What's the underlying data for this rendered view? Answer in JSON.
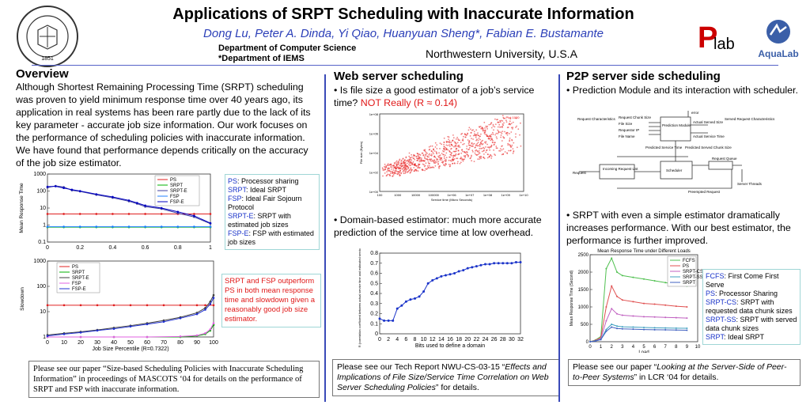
{
  "header": {
    "title": "Applications of SRPT Scheduling with Inaccurate Information",
    "authors": "Dong Lu,  Peter A. Dinda,  Yi Qiao,  Huanyuan Sheng*,  Fabian E. Bustamante",
    "dept1": "Department of Computer Science",
    "dept2": "*Department of IEMS",
    "university": "Northwestern University, U.S.A",
    "seal_text": "NORTHWESTERN UNIVERSITY",
    "seal_year": "1851",
    "plab_logo": "Plab",
    "aqualab_logo": "AquaLab"
  },
  "overview": {
    "heading": "Overview",
    "text": "Although Shortest Remaining Processing Time (SRPT) scheduling was proven to yield minimum response time over 40 years ago, its application in real systems has been rare partly due to the lack of its key parameter - accurate job size information. Our work focuses on the performance of scheduling policies with inaccurate information. We have found that performance depends critically on the accuracy of the job size estimator.",
    "legend": [
      {
        "abbr": "PS",
        "desc": ": Processor sharing"
      },
      {
        "abbr": "SRPT",
        "desc": ": Ideal SRPT"
      },
      {
        "abbr": "FSP",
        "desc": ": Ideal Fair Sojourn Protocol"
      },
      {
        "abbr": "SRPT-E",
        "desc": ": SRPT with estimated job sizes"
      },
      {
        "abbr": "FSP-E",
        "desc": ": FSP with estimated job sizes"
      }
    ],
    "note": "SRPT and FSP outperform PS in both mean response time and slowdown given a reasonably good job size estimator.",
    "ref": "Please see our paper “Size-based Scheduling Policies with Inaccurate Scheduling Information” in proceedings of MASCOTS ‘04 for details on the performance of SRPT and FSP with inaccurate information."
  },
  "web": {
    "heading": "Web server scheduling",
    "bullet1_a": "Is file size a good estimator of a job’s service time?",
    "bullet1_b": "NOT Really (R ≈ 0.14)",
    "bullet2": "Domain-based estimator: much more accurate prediction of the service time at low overhead.",
    "ref_a": "Please see our Tech Report NWU-CS-03-15 “",
    "ref_b": "Effects and Implications of File Size/Service Time Correlation on Web Server Scheduling Policies",
    "ref_c": "”  for details."
  },
  "p2p": {
    "heading": "P2P server side scheduling",
    "bullet1": "Prediction Module and its interaction with scheduler.",
    "bullet2": "SRPT with even a simple estimator dramatically increases performance.  With our best estimator, the performance is further improved.",
    "legend": [
      {
        "abbr": "FCFS",
        "desc": ": First Come First Serve"
      },
      {
        "abbr": "PS",
        "desc": ": Processor Sharing"
      },
      {
        "abbr": "SRPT-CS",
        "desc": ": SRPT with requested data chunk sizes"
      },
      {
        "abbr": "SRPT-SS",
        "desc": ": SRPT with served data chunk sizes"
      },
      {
        "abbr": "SRPT",
        "desc": ": Ideal SRPT"
      }
    ],
    "ref_a": "Please see our paper “",
    "ref_b": "Looking at the Server-Side of Peer-to-Peer Systems",
    "ref_c": "” in LCR ‘04 for details.",
    "diagram": {
      "prediction_module": "Prediction Module",
      "scheduler": "Scheduler",
      "incoming": "Incoming Request List",
      "request_queue": "Request Queue",
      "server_threads": "Server Threads",
      "request_characteristics": "Request Characteristics",
      "served_request_characteristics": "Served Request Characteristics",
      "request": "Request",
      "preempted": "Preempted Request",
      "predicted_service_time": "Predicted Service Time",
      "error": "error",
      "actual_served_size": "Actual Served Size",
      "actual_service_time": "Actual Service Time",
      "predicted_served_chunk_size": "Predicted Served Chunk Size",
      "inputs": [
        "Request Chunk Size",
        "File Size",
        "Requestor IP",
        "File Name"
      ]
    }
  },
  "chart_data": [
    {
      "id": "mean-response",
      "type": "line",
      "ylabel": "Mean Response Time",
      "xlabel": "",
      "yscale": "log",
      "ylim": [
        0.1,
        1000
      ],
      "xlim": [
        0,
        1
      ],
      "xticks": [
        "0",
        "0.2",
        "0.4",
        "0.6",
        "0.8",
        "1"
      ],
      "yticks": [
        "0.1",
        "1",
        "10",
        "100",
        "1000"
      ],
      "legend": [
        "PS",
        "SRPT",
        "SRPT-E",
        "FSP",
        "FSP-E"
      ],
      "series": [
        {
          "name": "PS",
          "color": "#e02020",
          "x": [
            0,
            0.1,
            0.2,
            0.3,
            0.4,
            0.5,
            0.6,
            0.7,
            0.8,
            0.9,
            1
          ],
          "values": [
            4.5,
            4.5,
            4.5,
            4.5,
            4.5,
            4.5,
            4.5,
            4.5,
            4.5,
            4.5,
            4.5
          ]
        },
        {
          "name": "SRPT",
          "color": "#00b000",
          "x": [
            0,
            0.1,
            0.2,
            0.3,
            0.4,
            0.5,
            0.6,
            0.7,
            0.8,
            0.9,
            1
          ],
          "values": [
            0.75,
            0.75,
            0.75,
            0.75,
            0.75,
            0.75,
            0.75,
            0.75,
            0.75,
            0.75,
            0.75
          ]
        },
        {
          "name": "SRPT-E",
          "color": "#4040a0",
          "x": [
            0,
            0.05,
            0.1,
            0.15,
            0.2,
            0.3,
            0.4,
            0.5,
            0.55,
            0.6,
            0.7,
            0.8,
            0.9,
            1
          ],
          "values": [
            160,
            200,
            170,
            110,
            95,
            60,
            40,
            25,
            18,
            12,
            9,
            5,
            3,
            1.2
          ]
        },
        {
          "name": "FSP",
          "color": "#2080ff",
          "x": [
            0,
            0.1,
            0.2,
            0.3,
            0.4,
            0.5,
            0.6,
            0.7,
            0.8,
            0.9,
            1
          ],
          "values": [
            0.8,
            0.8,
            0.8,
            0.8,
            0.8,
            0.8,
            0.8,
            0.8,
            0.8,
            0.8,
            0.8
          ]
        },
        {
          "name": "FSP-E",
          "color": "#0000c0",
          "x": [
            0,
            0.05,
            0.1,
            0.15,
            0.2,
            0.3,
            0.4,
            0.5,
            0.55,
            0.6,
            0.7,
            0.8,
            0.9,
            1
          ],
          "values": [
            180,
            190,
            150,
            120,
            100,
            65,
            45,
            28,
            20,
            14,
            10,
            6,
            3.5,
            1.3
          ]
        }
      ]
    },
    {
      "id": "slowdown",
      "type": "line",
      "ylabel": "Slowdown",
      "xlabel": "Job Size Percentile (R=0.7322)",
      "yscale": "log",
      "ylim": [
        1,
        1000
      ],
      "xlim": [
        0,
        100
      ],
      "xticks": [
        "0",
        "10",
        "20",
        "30",
        "40",
        "50",
        "60",
        "70",
        "80",
        "90",
        "100"
      ],
      "yticks": [
        "1",
        "10",
        "100",
        "1000"
      ],
      "legend": [
        "PS",
        "SRPT",
        "SRPT-E",
        "FSP",
        "FSP-E"
      ],
      "series": [
        {
          "name": "PS",
          "color": "#e02020",
          "x": [
            0,
            10,
            20,
            30,
            40,
            50,
            60,
            70,
            80,
            90,
            95,
            100
          ],
          "values": [
            18,
            18,
            18,
            18,
            18,
            18,
            18,
            18,
            18,
            18,
            18,
            18
          ]
        },
        {
          "name": "SRPT",
          "color": "#00b000",
          "x": [
            0,
            20,
            40,
            60,
            80,
            90,
            95,
            98,
            100
          ],
          "values": [
            1,
            1,
            1,
            1,
            1,
            1.1,
            1.3,
            1.8,
            3
          ]
        },
        {
          "name": "SRPT-E",
          "color": "#404040",
          "x": [
            0,
            10,
            20,
            30,
            40,
            50,
            60,
            70,
            80,
            90,
            95,
            98,
            100
          ],
          "values": [
            1.2,
            1.4,
            1.6,
            1.9,
            2.3,
            2.8,
            3.5,
            4.5,
            6,
            9,
            14,
            25,
            45
          ]
        },
        {
          "name": "FSP",
          "color": "#e060e0",
          "x": [
            0,
            20,
            40,
            60,
            80,
            90,
            95,
            98,
            100
          ],
          "values": [
            1,
            1,
            1,
            1,
            1.05,
            1.15,
            1.4,
            2,
            3.5
          ]
        },
        {
          "name": "FSP-E",
          "color": "#2030d0",
          "x": [
            0,
            10,
            20,
            30,
            40,
            50,
            60,
            70,
            80,
            90,
            95,
            98,
            100
          ],
          "values": [
            1.1,
            1.3,
            1.5,
            1.8,
            2.1,
            2.6,
            3.2,
            4,
            5.5,
            8,
            12,
            20,
            35
          ]
        }
      ]
    },
    {
      "id": "file-size-scatter",
      "type": "scatter",
      "title": "Plot 1000",
      "ylabel": "File size (Bytes)",
      "xlabel": "Service time (Micro Seconds)",
      "xscale": "log",
      "yscale": "log",
      "xticks": [
        "100",
        "1000",
        "10000",
        "100000",
        "1e+06",
        "1e+07",
        "1e+08",
        "1e+09",
        "1e+10"
      ],
      "yticks": [
        "1e+00",
        "1e+02",
        "1e+04",
        "1e+06",
        "1e+08"
      ]
    },
    {
      "id": "domain-correlation",
      "type": "line",
      "ylabel": "R (correlation coefficient between actual service time and estimated service time)",
      "xlabel": "Bits used to define a domain",
      "xlim": [
        0,
        32
      ],
      "ylim": [
        0,
        0.8
      ],
      "xticks": [
        "0",
        "2",
        "4",
        "6",
        "8",
        "10",
        "12",
        "14",
        "16",
        "18",
        "20",
        "22",
        "24",
        "26",
        "28",
        "30",
        "32"
      ],
      "yticks": [
        "0",
        "0.1",
        "0.2",
        "0.3",
        "0.4",
        "0.5",
        "0.6",
        "0.7",
        "0.8"
      ],
      "x": [
        0,
        1,
        2,
        3,
        4,
        5,
        6,
        7,
        8,
        9,
        10,
        11,
        12,
        13,
        14,
        15,
        16,
        17,
        18,
        19,
        20,
        21,
        22,
        23,
        24,
        25,
        26,
        27,
        28,
        29,
        30,
        31,
        32
      ],
      "values": [
        0.15,
        0.13,
        0.13,
        0.13,
        0.25,
        0.28,
        0.32,
        0.34,
        0.35,
        0.37,
        0.42,
        0.5,
        0.53,
        0.55,
        0.57,
        0.58,
        0.59,
        0.6,
        0.62,
        0.63,
        0.65,
        0.66,
        0.67,
        0.68,
        0.69,
        0.69,
        0.7,
        0.7,
        0.7,
        0.7,
        0.7,
        0.71,
        0.71
      ]
    },
    {
      "id": "p2p-mean-response",
      "type": "line",
      "title": "Mean Response Time under Different Loads",
      "ylabel": "Mean Response Time (Second)",
      "xlabel": "Load",
      "xlim": [
        0,
        10
      ],
      "ylim": [
        0,
        2500
      ],
      "xticks": [
        "0",
        "1",
        "2",
        "3",
        "4",
        "5",
        "6",
        "7",
        "8",
        "9",
        "10"
      ],
      "yticks": [
        "0",
        "500",
        "1000",
        "1500",
        "2000",
        "2500"
      ],
      "legend": [
        "FCFS",
        "PS",
        "SRPT-CS",
        "SRPT-SS",
        "SRPT"
      ],
      "series": [
        {
          "name": "FCFS",
          "color": "#50c050",
          "x": [
            0,
            0.5,
            1,
            1.5,
            2,
            2.5,
            3,
            4,
            5,
            6,
            7,
            8,
            9
          ],
          "values": [
            0,
            50,
            150,
            2100,
            2400,
            2000,
            1900,
            1850,
            1800,
            1750,
            1700,
            1650,
            1600
          ]
        },
        {
          "name": "PS",
          "color": "#e05050",
          "x": [
            0,
            0.5,
            1,
            1.5,
            2,
            2.5,
            3,
            4,
            5,
            6,
            7,
            8,
            9
          ],
          "values": [
            0,
            40,
            120,
            1000,
            1600,
            1300,
            1200,
            1150,
            1100,
            1080,
            1050,
            1020,
            1000
          ]
        },
        {
          "name": "SRPT-CS",
          "color": "#c060c0",
          "x": [
            0,
            0.5,
            1,
            1.5,
            2,
            2.5,
            3,
            4,
            5,
            6,
            7,
            8,
            9
          ],
          "values": [
            0,
            30,
            90,
            600,
            950,
            800,
            760,
            740,
            720,
            710,
            700,
            690,
            680
          ]
        },
        {
          "name": "SRPT-SS",
          "color": "#40a0c0",
          "x": [
            0,
            0.5,
            1,
            1.5,
            2,
            2.5,
            3,
            4,
            5,
            6,
            7,
            8,
            9
          ],
          "values": [
            0,
            25,
            70,
            350,
            500,
            450,
            430,
            420,
            410,
            400,
            395,
            390,
            385
          ]
        },
        {
          "name": "SRPT",
          "color": "#4060c0",
          "x": [
            0,
            0.5,
            1,
            1.5,
            2,
            2.5,
            3,
            4,
            5,
            6,
            7,
            8,
            9
          ],
          "values": [
            0,
            20,
            60,
            300,
            420,
            380,
            370,
            360,
            350,
            345,
            340,
            335,
            330
          ]
        }
      ]
    }
  ]
}
